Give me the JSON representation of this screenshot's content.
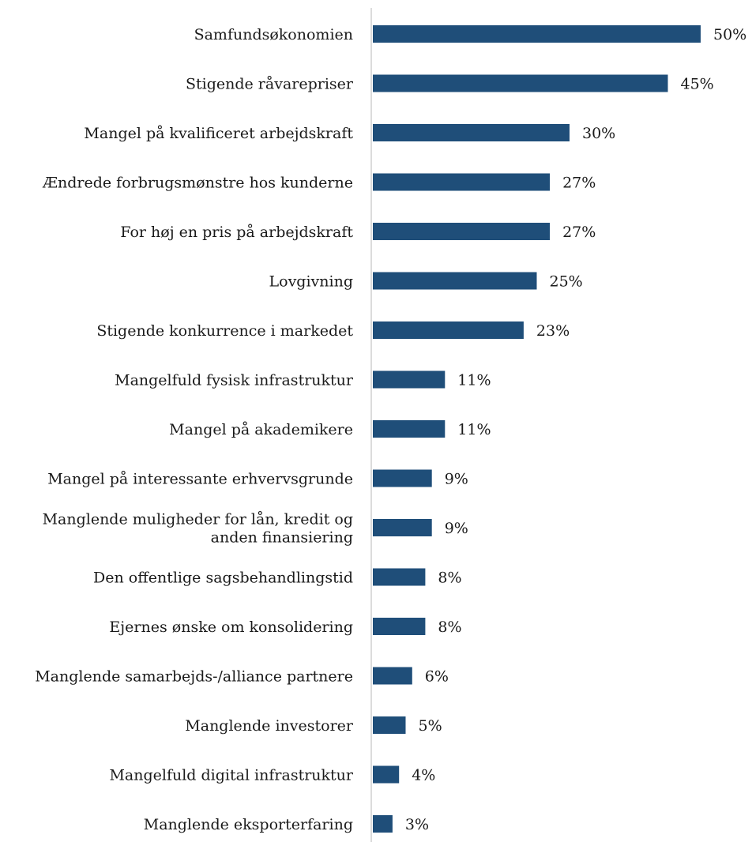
{
  "chart_data": {
    "type": "bar",
    "orientation": "horizontal",
    "title": "",
    "xlabel": "",
    "ylabel": "",
    "xlim": [
      0,
      50
    ],
    "grid": false,
    "legend": "none",
    "bar_color": "#1f4e79",
    "value_suffix": "%",
    "categories": [
      "Samfundsøkonomien",
      "Stigende råvarepriser",
      "Mangel på kvalificeret arbejdskraft",
      "Ændrede forbrugsmønstre hos kunderne",
      "For høj en pris på arbejdskraft",
      "Lovgivning",
      "Stigende konkurrence i markedet",
      "Mangelfuld fysisk infrastruktur",
      "Mangel på akademikere",
      "Mangel på interessante erhvervsgrunde",
      "Manglende muligheder for lån, kredit og anden finansiering",
      "Den offentlige sagsbehandlingstid",
      "Ejernes ønske om konsolidering",
      "Manglende samarbejds-/alliance partnere",
      "Manglende investorer",
      "Mangelfuld digital infrastruktur",
      "Manglende eksporterfaring"
    ],
    "category_lines": [
      [
        "Samfundsøkonomien"
      ],
      [
        "Stigende råvarepriser"
      ],
      [
        "Mangel på kvalificeret arbejdskraft"
      ],
      [
        "Ændrede forbrugsmønstre hos kunderne"
      ],
      [
        "For høj en pris på arbejdskraft"
      ],
      [
        "Lovgivning"
      ],
      [
        "Stigende konkurrence i markedet"
      ],
      [
        "Mangelfuld fysisk infrastruktur"
      ],
      [
        "Mangel på akademikere"
      ],
      [
        "Mangel på interessante erhvervsgrunde"
      ],
      [
        "Manglende muligheder for lån, kredit og",
        "anden finansiering"
      ],
      [
        "Den offentlige sagsbehandlingstid"
      ],
      [
        "Ejernes ønske om konsolidering"
      ],
      [
        "Manglende samarbejds-/alliance partnere"
      ],
      [
        "Manglende investorer"
      ],
      [
        "Mangelfuld digital infrastruktur"
      ],
      [
        "Manglende eksporterfaring"
      ]
    ],
    "values": [
      50,
      45,
      30,
      27,
      27,
      25,
      23,
      11,
      11,
      9,
      9,
      8,
      8,
      6,
      5,
      4,
      3
    ]
  }
}
